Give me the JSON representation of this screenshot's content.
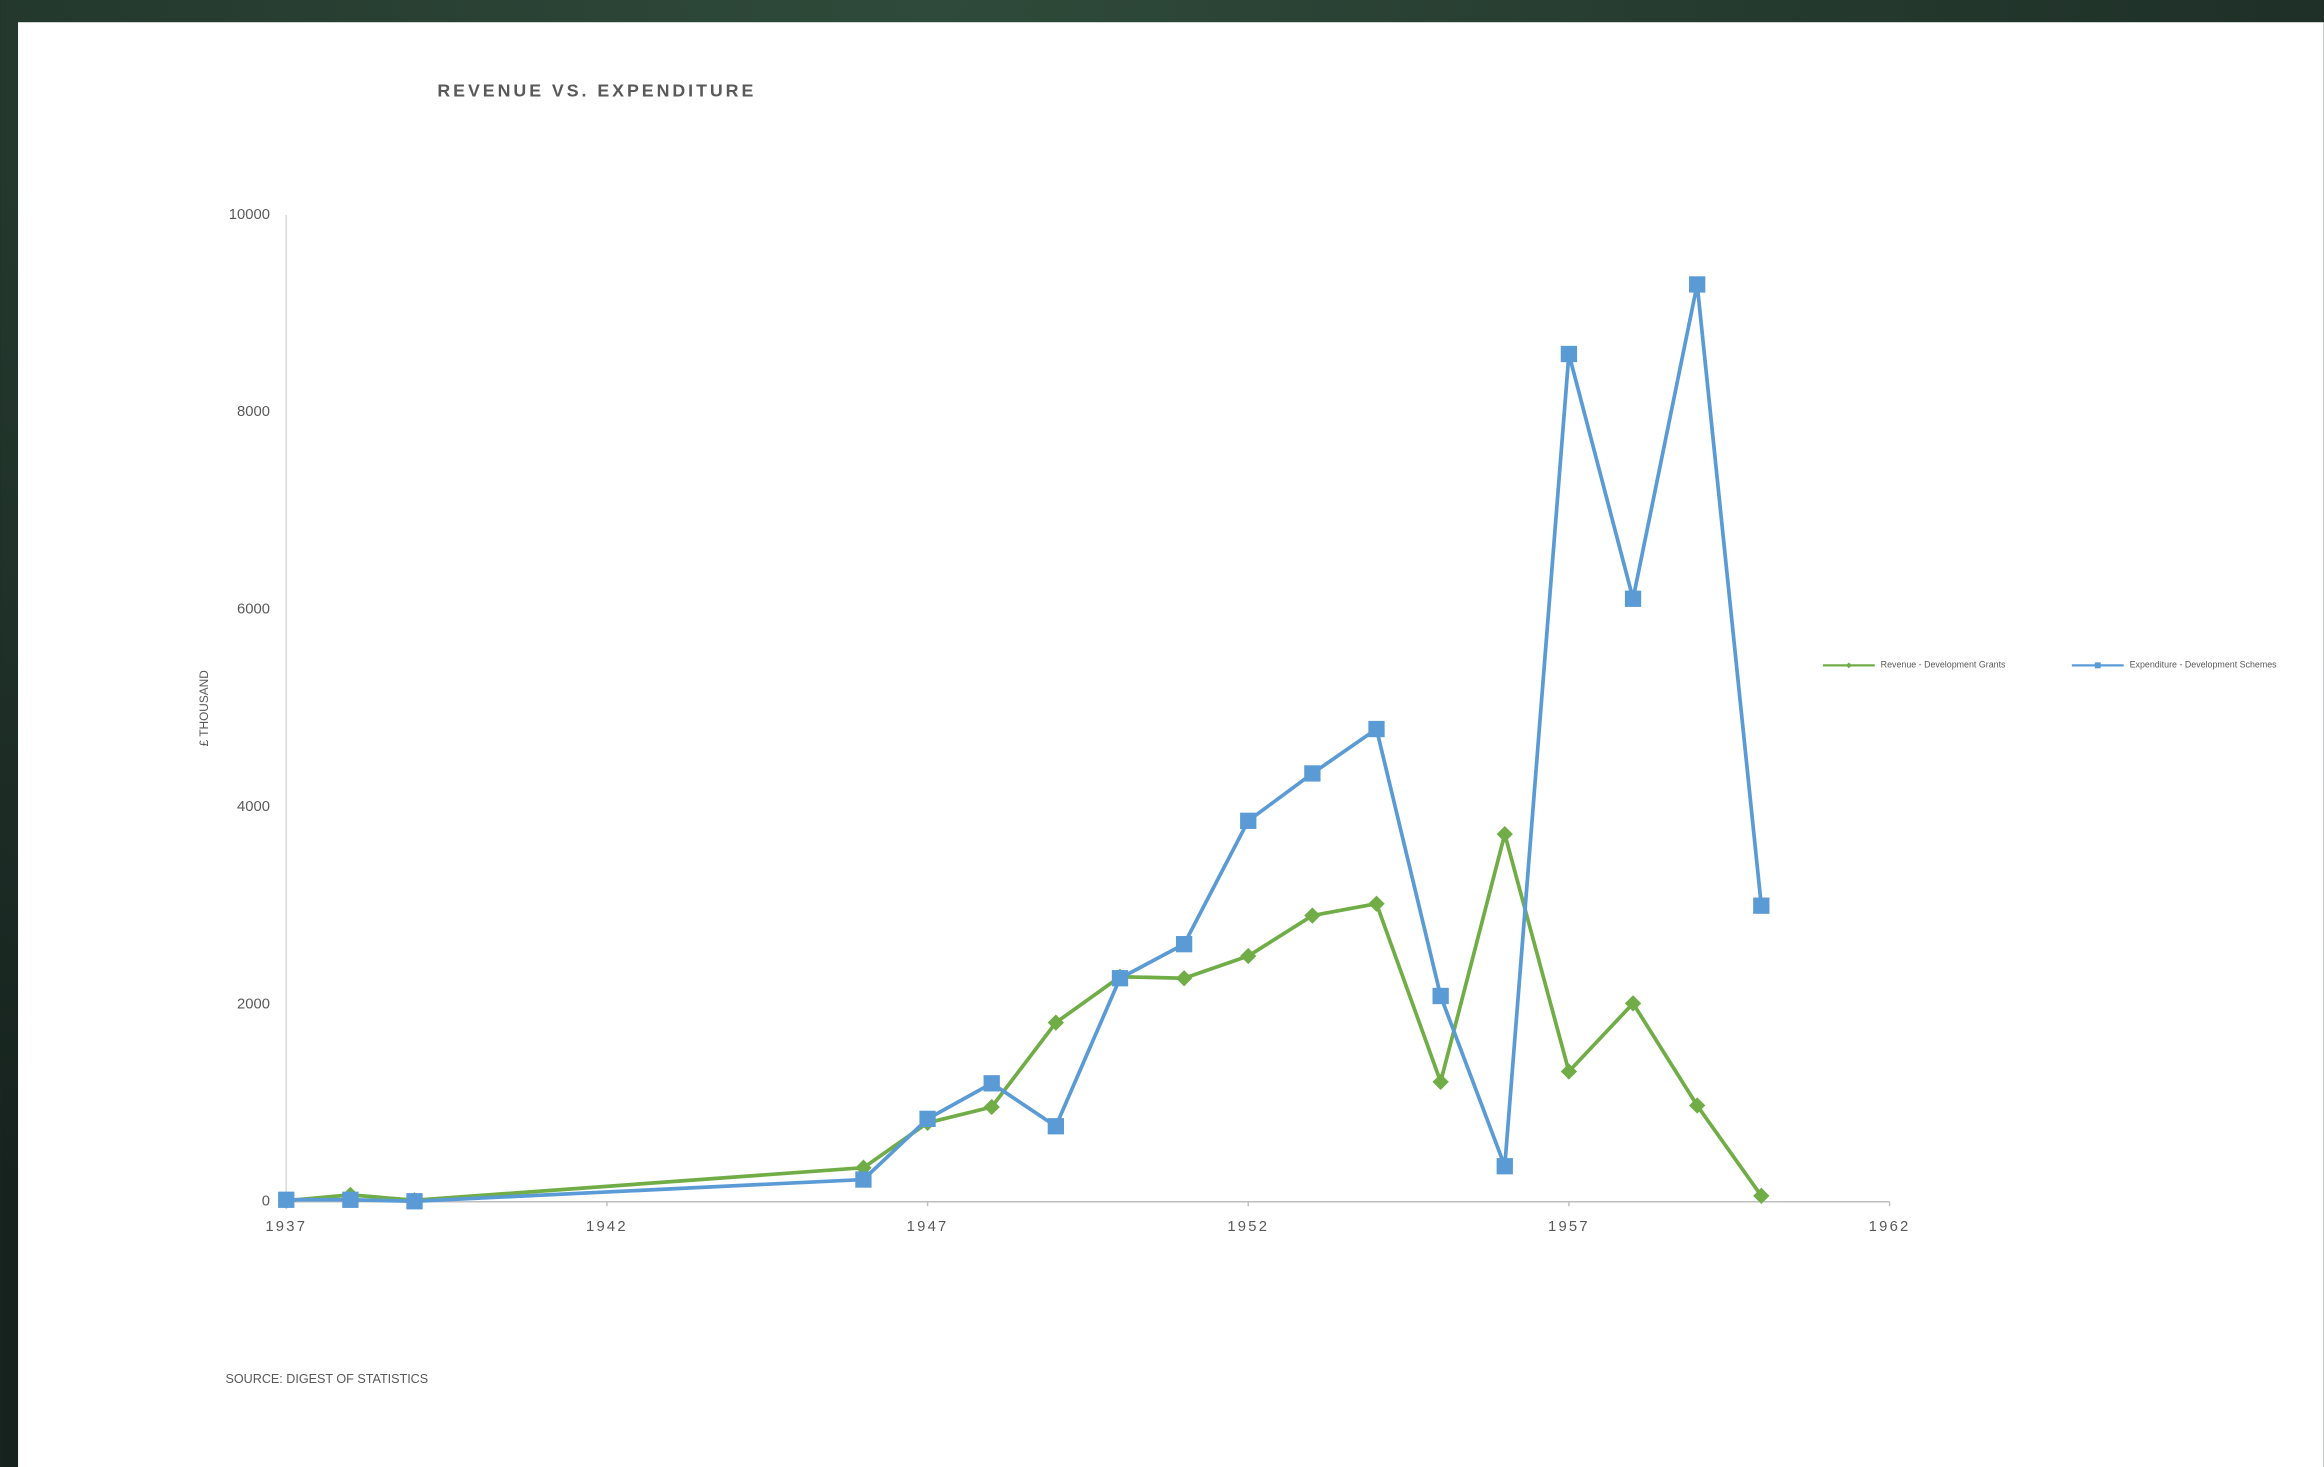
{
  "chart_data": {
    "type": "line",
    "title": "REVENUE VS. EXPENDITURE",
    "y_label": "£ THOUSAND",
    "source": "SOURCE: DIGEST OF STATISTICS",
    "x": [
      1937,
      1938,
      1939,
      1946,
      1947,
      1948,
      1949,
      1950,
      1951,
      1952,
      1953,
      1954,
      1955,
      1956,
      1957,
      1958,
      1959,
      1960
    ],
    "series": [
      {
        "name": "Revenue - Development Grants",
        "color": "#70ad47",
        "marker": "diamond",
        "values": [
          10,
          70,
          15,
          345,
          800,
          960,
          1815,
          2280,
          2265,
          2490,
          2900,
          3020,
          1215,
          3725,
          1320,
          2010,
          975,
          60
        ]
      },
      {
        "name": "Expenditure - Development Schemes",
        "color": "#5b9bd5",
        "marker": "square",
        "values": [
          20,
          20,
          5,
          225,
          840,
          1200,
          765,
          2265,
          2610,
          3860,
          4340,
          4790,
          2085,
          360,
          8590,
          6110,
          9295,
          3000
        ]
      }
    ],
    "xlim": [
      1937,
      1962
    ],
    "xticks": [
      1937,
      1942,
      1947,
      1952,
      1957,
      1962
    ],
    "ylim": [
      0,
      10000
    ],
    "yticks": [
      0,
      2000,
      4000,
      6000,
      8000,
      10000
    ],
    "grid": false,
    "legend": "right"
  }
}
